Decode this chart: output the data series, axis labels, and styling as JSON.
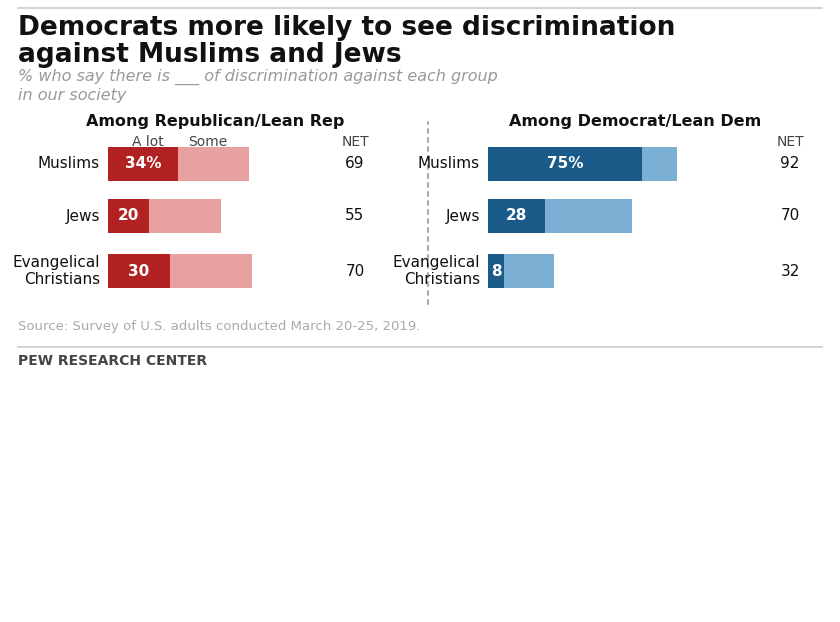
{
  "title_line1": "Democrats more likely to see discrimination",
  "title_line2": "against Muslims and Jews",
  "subtitle_line1": "% who say there is ___ of discrimination against each group",
  "subtitle_line2": "in our society",
  "left_panel_title": "Among Republican/Lean Rep",
  "right_panel_title": "Among Democrat/Lean Dem",
  "categories": [
    "Muslims",
    "Jews",
    "Evangelical\nChristians"
  ],
  "rep_alot": [
    34,
    20,
    30
  ],
  "rep_some": [
    35,
    35,
    40
  ],
  "rep_net": [
    69,
    55,
    70
  ],
  "dem_alot": [
    75,
    28,
    8
  ],
  "dem_some": [
    17,
    42,
    24
  ],
  "dem_net": [
    92,
    70,
    32
  ],
  "rep_alot_color": "#b22222",
  "rep_some_color": "#e8a0a0",
  "dem_alot_color": "#1a5b8a",
  "dem_some_color": "#7bafd4",
  "source_text": "Source: Survey of U.S. adults conducted March 20-25, 2019.",
  "footer_text": "PEW RESEARCH CENTER",
  "background_color": "#ffffff",
  "scale_factor": 2.05
}
